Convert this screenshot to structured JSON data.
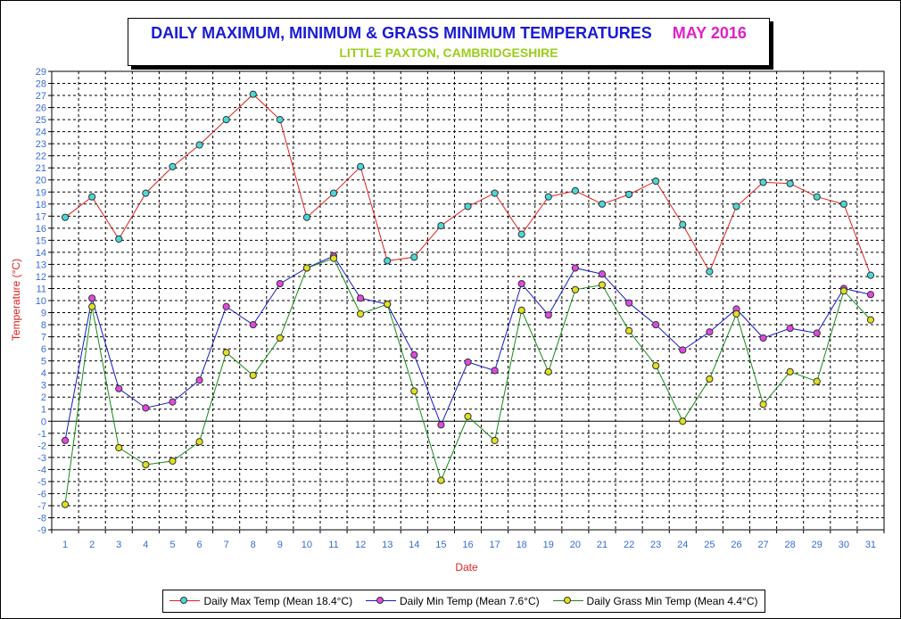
{
  "colors": {
    "max": "#e02020",
    "max_marker": "#4ad8d8",
    "min": "#1a1ac8",
    "min_marker": "#e04ae0",
    "grass": "#1a8a1a",
    "grass_marker": "#e0e020",
    "axis_label": "#e02020",
    "tick_label": "#3a6ad8"
  },
  "title": {
    "main": "DAILY MAXIMUM, MINIMUM & GRASS MINIMUM TEMPERATURES",
    "month": "MAY 2016",
    "subtitle": "LITTLE PAXTON, CAMBRIDGESHIRE"
  },
  "chart_data": {
    "type": "line",
    "xlabel": "Date",
    "ylabel": "Temperature (°C)",
    "ylim": [
      -9,
      29
    ],
    "x": [
      1,
      2,
      3,
      4,
      5,
      6,
      7,
      8,
      9,
      10,
      11,
      12,
      13,
      14,
      15,
      16,
      17,
      18,
      19,
      20,
      21,
      22,
      23,
      24,
      25,
      26,
      27,
      28,
      29,
      30,
      31
    ],
    "grid": true,
    "legend_position": "bottom",
    "series": [
      {
        "name": "Daily Max Temp (Mean 18.4°C)",
        "values": [
          16.9,
          18.6,
          15.1,
          18.9,
          21.1,
          22.9,
          25.0,
          27.1,
          25.0,
          16.9,
          18.9,
          21.1,
          13.3,
          13.6,
          16.2,
          17.8,
          18.9,
          15.5,
          18.6,
          19.1,
          18.0,
          18.8,
          19.9,
          16.3,
          12.4,
          17.8,
          19.8,
          19.7,
          18.6,
          18.0,
          12.1
        ]
      },
      {
        "name": "Daily Min Temp (Mean 7.6°C)",
        "values": [
          -1.6,
          10.2,
          2.7,
          1.1,
          1.6,
          3.4,
          9.5,
          8.0,
          11.4,
          12.7,
          13.7,
          10.2,
          9.7,
          5.5,
          -0.3,
          4.9,
          4.2,
          11.4,
          8.8,
          12.7,
          12.2,
          9.8,
          8.0,
          5.9,
          7.4,
          9.3,
          6.9,
          7.7,
          7.3,
          11.0,
          10.5
        ]
      },
      {
        "name": "Daily Grass Min Temp (Mean 4.4°C)",
        "values": [
          -6.9,
          9.5,
          -2.2,
          -3.6,
          -3.3,
          -1.7,
          5.7,
          3.8,
          6.9,
          12.7,
          13.5,
          8.9,
          9.7,
          2.5,
          -4.9,
          0.4,
          -1.6,
          9.2,
          4.1,
          10.9,
          11.3,
          7.5,
          4.6,
          0.0,
          3.5,
          8.9,
          1.4,
          4.1,
          3.3,
          10.8,
          8.4
        ]
      }
    ]
  }
}
